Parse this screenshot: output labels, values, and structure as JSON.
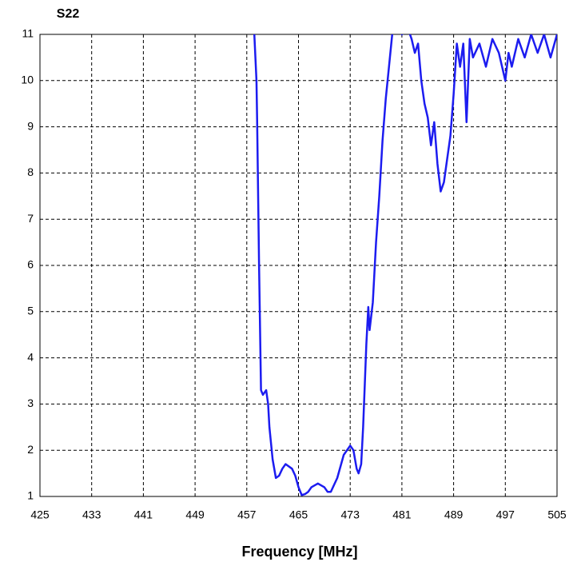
{
  "chart_data": {
    "type": "line",
    "title": "S22",
    "x_label": "Frequency [MHz]",
    "x": [
      458.0,
      458.5,
      458.6,
      458.9,
      459.2,
      459.5,
      460,
      460.3,
      460.5,
      461,
      461.5,
      462,
      462.5,
      463,
      464,
      464.5,
      465,
      465.5,
      466,
      466.5,
      467,
      468,
      469,
      469.5,
      470,
      471,
      472,
      473,
      473.5,
      474,
      474.3,
      474.7,
      475,
      475.5,
      475.8,
      476,
      476.5,
      477,
      477.5,
      478,
      478.5,
      479,
      479.5,
      480,
      481,
      482,
      482.5,
      483,
      483.5,
      484,
      484.5,
      485,
      485.5,
      486,
      486.5,
      487,
      487.5,
      488,
      488.5,
      489,
      489.5,
      490,
      490.5,
      491,
      491.5,
      492,
      493,
      494,
      495,
      496,
      497,
      497.5,
      498,
      499,
      500,
      501,
      502,
      503,
      504,
      505
    ],
    "series": [
      {
        "name": "S22",
        "color": "#1c1cf0",
        "values": [
          11.5,
          10.0,
          9.15,
          6.0,
          3.3,
          3.2,
          3.3,
          3.0,
          2.5,
          1.8,
          1.4,
          1.45,
          1.6,
          1.7,
          1.6,
          1.45,
          1.2,
          1.03,
          1.05,
          1.1,
          1.2,
          1.28,
          1.2,
          1.1,
          1.1,
          1.4,
          1.9,
          2.1,
          2.0,
          1.6,
          1.5,
          1.7,
          2.5,
          4.3,
          5.1,
          4.6,
          5.2,
          6.5,
          7.5,
          8.7,
          9.6,
          10.3,
          11.0,
          11.2,
          11.0,
          11.1,
          10.9,
          10.6,
          10.8,
          10.0,
          9.5,
          9.2,
          8.6,
          9.1,
          8.2,
          7.6,
          7.8,
          8.3,
          8.8,
          9.7,
          10.8,
          10.3,
          10.8,
          9.1,
          10.9,
          10.5,
          10.8,
          10.3,
          10.9,
          10.6,
          10.0,
          10.6,
          10.3,
          10.9,
          10.5,
          11.0,
          10.6,
          11.0,
          10.5,
          11.0
        ]
      }
    ],
    "xlim": [
      425,
      505
    ],
    "xticks": [
      425,
      433,
      441,
      449,
      457,
      465,
      473,
      481,
      489,
      497,
      505
    ],
    "ylim": [
      1,
      11
    ],
    "yticks": [
      1,
      2,
      3,
      4,
      5,
      6,
      7,
      8,
      9,
      10,
      11
    ],
    "grid": true
  }
}
